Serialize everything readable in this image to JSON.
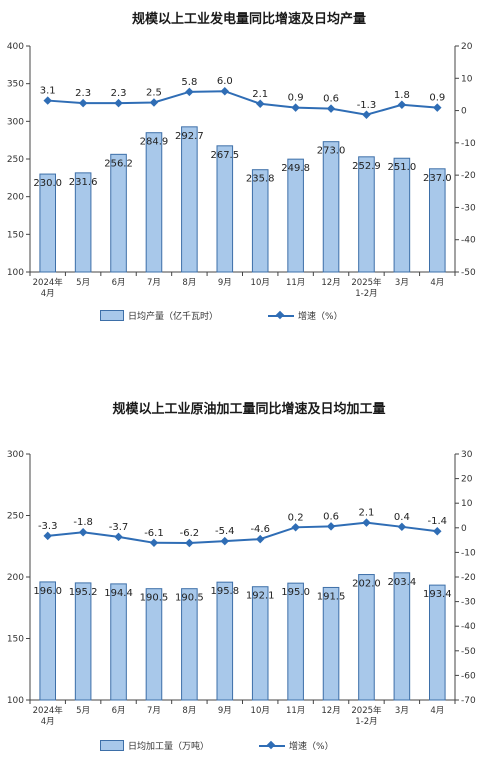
{
  "chart_data": [
    {
      "type": "bar",
      "title": "规模以上工业发电量同比增速及日均产量",
      "categories": [
        "2024年\n4月",
        "5月",
        "6月",
        "7月",
        "8月",
        "9月",
        "10月",
        "11月",
        "12月",
        "2025年\n1-2月",
        "3月",
        "4月"
      ],
      "series": [
        {
          "name": "日均产量（亿千瓦时）",
          "type": "bar",
          "axis": "left",
          "values": [
            230.0,
            231.6,
            256.2,
            284.9,
            292.7,
            267.5,
            235.8,
            249.8,
            273.0,
            252.9,
            251.0,
            237.0
          ],
          "labels": [
            "230.0",
            "231.6",
            "256.2",
            "284.9",
            "292.7",
            "267.5",
            "235.8",
            "249.8",
            "273.0",
            "252.9",
            "251.0",
            "237.0"
          ]
        },
        {
          "name": "增速（%）",
          "type": "line",
          "axis": "right",
          "values": [
            3.1,
            2.3,
            2.3,
            2.5,
            5.8,
            6.0,
            2.1,
            0.9,
            0.6,
            -1.3,
            1.8,
            0.9
          ],
          "labels": [
            "3.1",
            "2.3",
            "2.3",
            "2.5",
            "5.8",
            "6.0",
            "2.1",
            "0.9",
            "0.6",
            "-1.3",
            "1.8",
            "0.9"
          ]
        }
      ],
      "ylim": [
        100,
        400
      ],
      "yticks": [
        "100",
        "150",
        "200",
        "250",
        "300",
        "350",
        "400"
      ],
      "y2lim": [
        -50,
        20
      ],
      "y2ticks": [
        "-50",
        "-40",
        "-30",
        "-20",
        "-10",
        "0",
        "10",
        "20"
      ],
      "grid": false,
      "legend": "bottom",
      "colors": {
        "bar_fill": "#a8c8ea",
        "bar_stroke": "#3d6fa8",
        "line": "#2f6db5"
      }
    },
    {
      "type": "bar",
      "title": "规模以上工业原油加工量同比增速及日均加工量",
      "categories": [
        "2024年\n4月",
        "5月",
        "6月",
        "7月",
        "8月",
        "9月",
        "10月",
        "11月",
        "12月",
        "2025年\n1-2月",
        "3月",
        "4月"
      ],
      "series": [
        {
          "name": "日均加工量（万吨）",
          "type": "bar",
          "axis": "left",
          "values": [
            196.0,
            195.2,
            194.4,
            190.5,
            190.5,
            195.8,
            192.1,
            195.0,
            191.5,
            202.0,
            203.4,
            193.4
          ],
          "labels": [
            "196.0",
            "195.2",
            "194.4",
            "190.5",
            "190.5",
            "195.8",
            "192.1",
            "195.0",
            "191.5",
            "202.0",
            "203.4",
            "193.4"
          ]
        },
        {
          "name": "增速（%）",
          "type": "line",
          "axis": "right",
          "values": [
            -3.3,
            -1.8,
            -3.7,
            -6.1,
            -6.2,
            -5.4,
            -4.6,
            0.2,
            0.6,
            2.1,
            0.4,
            -1.4
          ],
          "labels": [
            "-3.3",
            "-1.8",
            "-3.7",
            "-6.1",
            "-6.2",
            "-5.4",
            "-4.6",
            "0.2",
            "0.6",
            "2.1",
            "0.4",
            "-1.4"
          ]
        }
      ],
      "ylim": [
        100,
        300
      ],
      "yticks": [
        "100",
        "150",
        "200",
        "250",
        "300"
      ],
      "y2lim": [
        -70,
        30
      ],
      "y2ticks": [
        "-70",
        "-60",
        "-50",
        "-40",
        "-30",
        "-20",
        "-10",
        "0",
        "10",
        "20",
        "30"
      ],
      "grid": false,
      "legend": "bottom",
      "colors": {
        "bar_fill": "#a8c8ea",
        "bar_stroke": "#3d6fa8",
        "line": "#2f6db5"
      }
    }
  ]
}
